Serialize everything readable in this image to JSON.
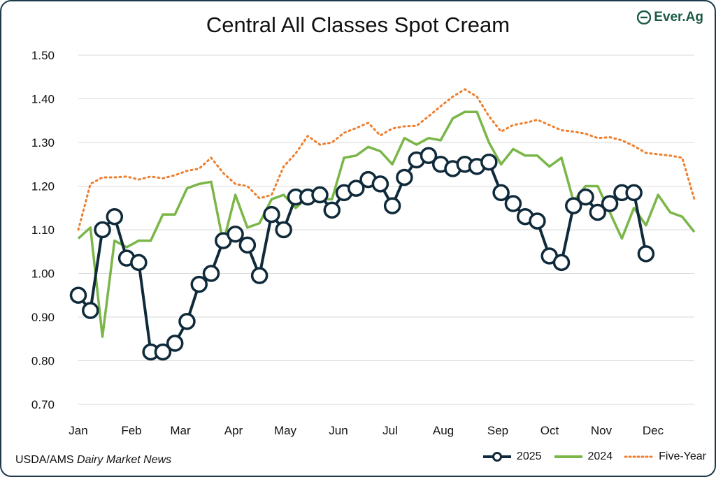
{
  "header": {
    "title": "Central All Classes Spot Cream",
    "logo_text": "Ever.Ag"
  },
  "footer": {
    "source_prefix": "USDA/AMS",
    "source_italic": "Dairy Market News"
  },
  "colors": {
    "series_2025": "#0f2a3a",
    "series_2024": "#7ab648",
    "five_year": "#ee7d2c",
    "grid": "#d9d9d9",
    "logo": "#1b5a45"
  },
  "chart_data": {
    "type": "line",
    "title": "Central All Classes Spot Cream",
    "xlabel": "",
    "ylabel": "",
    "x_unit": "week of year",
    "xlim": [
      1,
      52
    ],
    "ylim": [
      0.7,
      1.5
    ],
    "y_ticks": [
      "0.70",
      "0.80",
      "0.90",
      "1.00",
      "1.10",
      "1.20",
      "1.30",
      "1.40",
      "1.50"
    ],
    "x_tick_labels": [
      "Jan",
      "Feb",
      "Mar",
      "Apr",
      "May",
      "Jun",
      "Jul",
      "Aug",
      "Sep",
      "Oct",
      "Nov",
      "Dec"
    ],
    "grid": true,
    "legend_position": "bottom-right",
    "series": [
      {
        "name": "2025",
        "style": "line-with-hollow-markers",
        "x": [
          1,
          2,
          3,
          4,
          5,
          6,
          7,
          8,
          9,
          10,
          11,
          12,
          13,
          14,
          15,
          16,
          17,
          18,
          19,
          20,
          21,
          22,
          23,
          24,
          25,
          26,
          27,
          28,
          29,
          30,
          31,
          32,
          33,
          34,
          35,
          36,
          37,
          38,
          39,
          40,
          41,
          42,
          43,
          44,
          45,
          46,
          47,
          48
        ],
        "values": [
          0.95,
          0.915,
          1.1,
          1.13,
          1.035,
          1.025,
          0.82,
          0.82,
          0.84,
          0.89,
          0.975,
          1.0,
          1.075,
          1.09,
          1.065,
          0.995,
          1.135,
          1.1,
          1.175,
          1.175,
          1.18,
          1.145,
          1.185,
          1.195,
          1.215,
          1.205,
          1.155,
          1.22,
          1.26,
          1.27,
          1.25,
          1.24,
          1.25,
          1.245,
          1.255,
          1.185,
          1.16,
          1.13,
          1.12,
          1.04,
          1.025,
          1.155,
          1.175,
          1.14,
          1.16,
          1.185,
          1.185,
          1.045
        ]
      },
      {
        "name": "2024",
        "style": "line",
        "x": [
          1,
          2,
          3,
          4,
          5,
          6,
          7,
          8,
          9,
          10,
          11,
          12,
          13,
          14,
          15,
          16,
          17,
          18,
          19,
          20,
          21,
          22,
          23,
          24,
          25,
          26,
          27,
          28,
          29,
          30,
          31,
          32,
          33,
          34,
          35,
          36,
          37,
          38,
          39,
          40,
          41,
          42,
          43,
          44,
          45,
          46,
          47,
          48,
          49,
          50,
          51,
          52
        ],
        "values": [
          1.08,
          1.105,
          0.855,
          1.075,
          1.06,
          1.075,
          1.075,
          1.135,
          1.135,
          1.195,
          1.205,
          1.21,
          1.07,
          1.18,
          1.105,
          1.115,
          1.17,
          1.18,
          1.15,
          1.175,
          1.17,
          1.17,
          1.265,
          1.27,
          1.29,
          1.28,
          1.25,
          1.31,
          1.295,
          1.31,
          1.305,
          1.355,
          1.37,
          1.37,
          1.3,
          1.25,
          1.285,
          1.27,
          1.27,
          1.245,
          1.265,
          1.165,
          1.2,
          1.2,
          1.14,
          1.08,
          1.15,
          1.11,
          1.18,
          1.14,
          1.13,
          1.095
        ]
      },
      {
        "name": "Five-Year",
        "style": "dotted",
        "x": [
          1,
          2,
          3,
          4,
          5,
          6,
          7,
          8,
          9,
          10,
          11,
          12,
          13,
          14,
          15,
          16,
          17,
          18,
          19,
          20,
          21,
          22,
          23,
          24,
          25,
          26,
          27,
          28,
          29,
          30,
          31,
          32,
          33,
          34,
          35,
          36,
          37,
          38,
          39,
          40,
          41,
          42,
          43,
          44,
          45,
          46,
          47,
          48,
          49,
          50,
          51,
          52
        ],
        "values": [
          1.1,
          1.205,
          1.22,
          1.22,
          1.222,
          1.215,
          1.222,
          1.218,
          1.225,
          1.235,
          1.24,
          1.265,
          1.23,
          1.205,
          1.2,
          1.172,
          1.18,
          1.245,
          1.275,
          1.315,
          1.295,
          1.3,
          1.322,
          1.333,
          1.345,
          1.316,
          1.332,
          1.337,
          1.338,
          1.36,
          1.383,
          1.405,
          1.422,
          1.405,
          1.36,
          1.325,
          1.34,
          1.345,
          1.352,
          1.34,
          1.328,
          1.325,
          1.32,
          1.31,
          1.312,
          1.305,
          1.292,
          1.276,
          1.273,
          1.27,
          1.265,
          1.17
        ]
      }
    ]
  }
}
